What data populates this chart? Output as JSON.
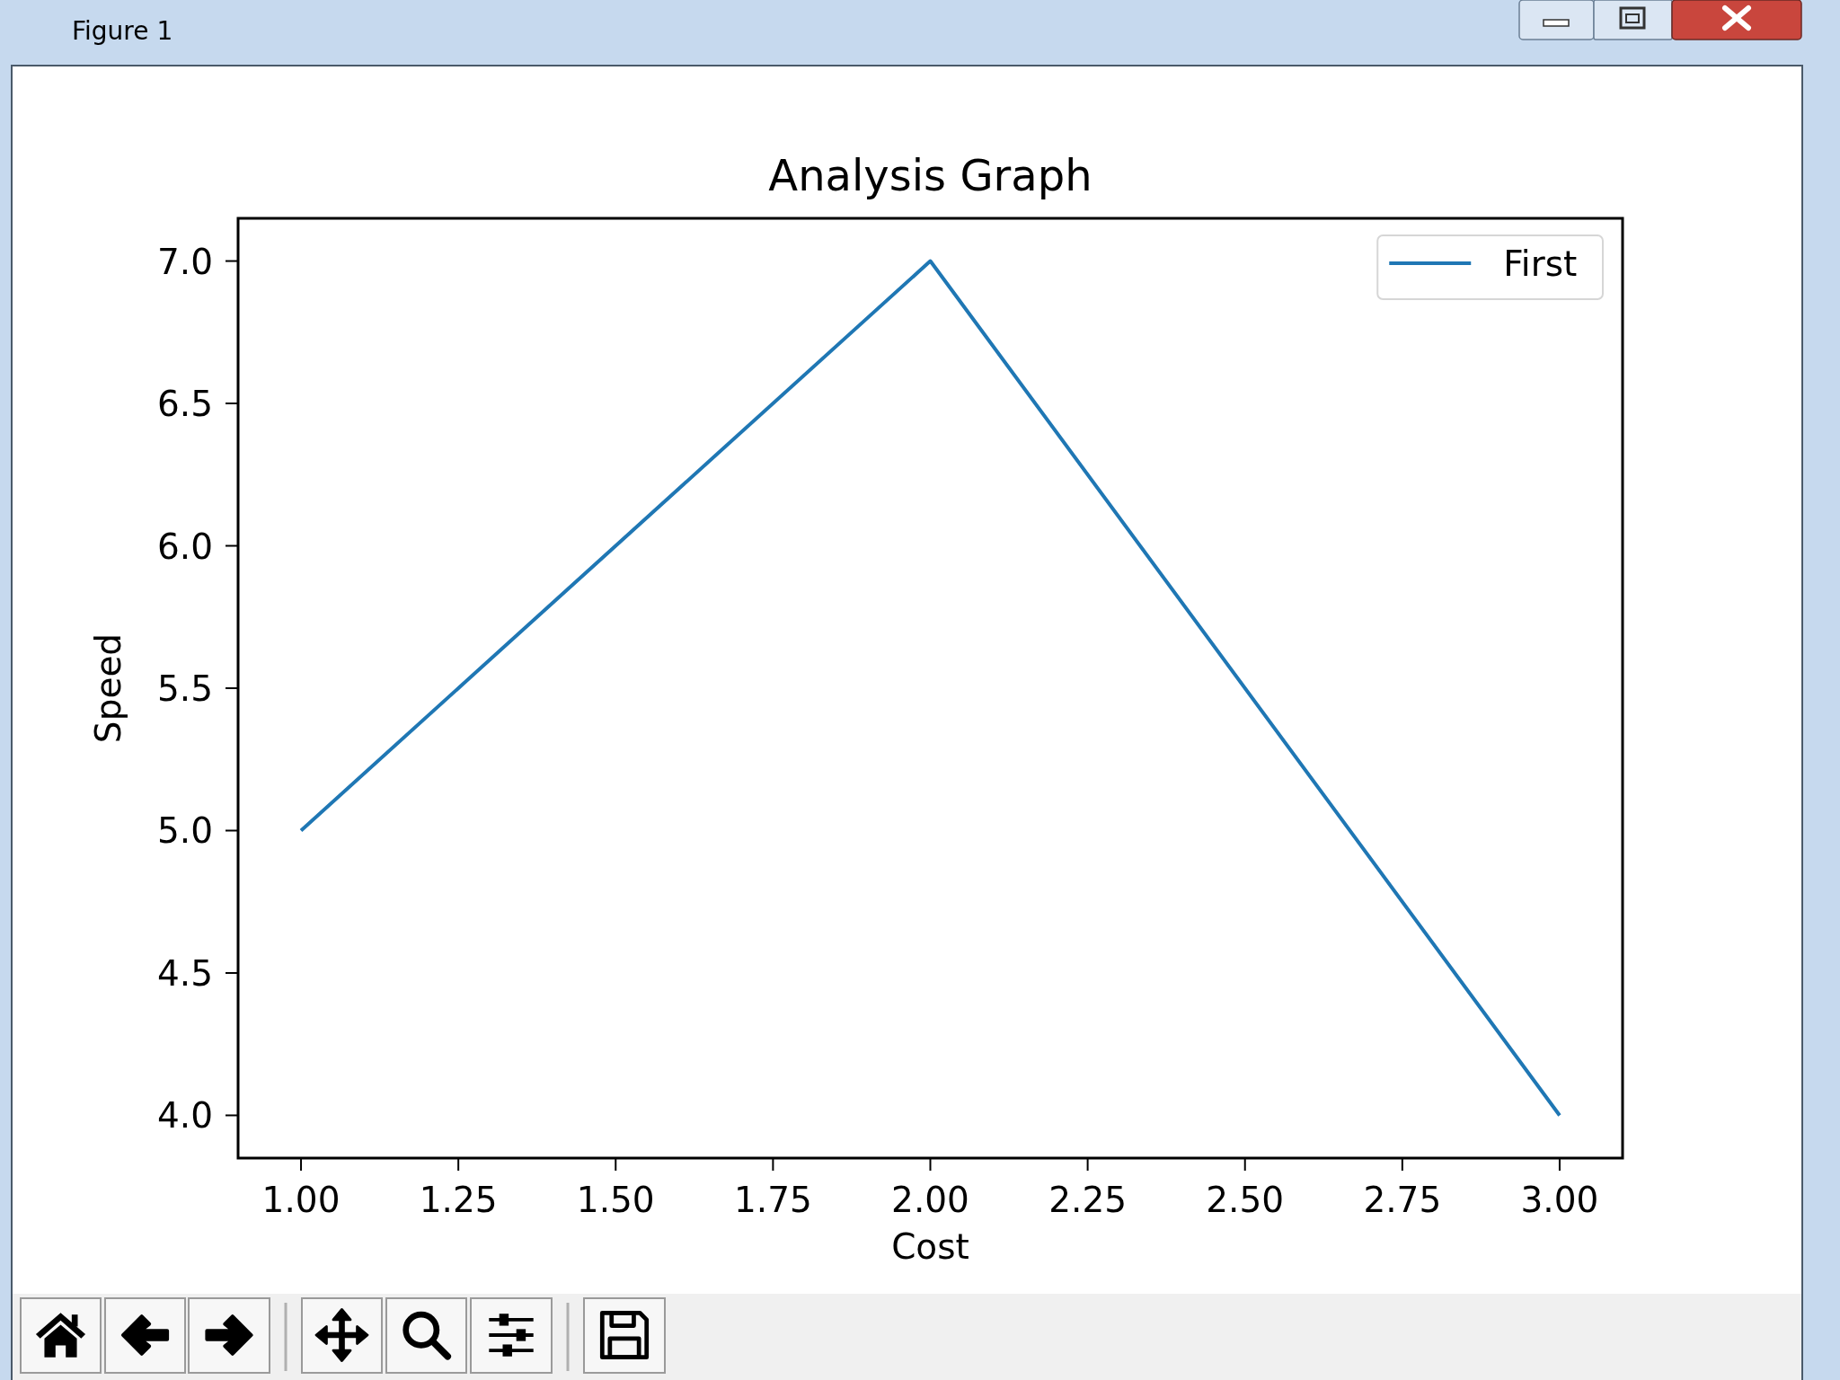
{
  "chart_data": {
    "type": "line",
    "title": "Analysis Graph",
    "xlabel": "Cost",
    "ylabel": "Speed",
    "x": [
      1,
      2,
      3
    ],
    "series": [
      {
        "name": "First",
        "color": "#1f77b4",
        "values": [
          5,
          7,
          4
        ]
      }
    ],
    "xlim": [
      0.9,
      3.1
    ],
    "xticks": [
      {
        "value": 1,
        "label": "1.00"
      },
      {
        "value": 1.25,
        "label": "1.25"
      },
      {
        "value": 1.5,
        "label": "1.50"
      },
      {
        "value": 1.75,
        "label": "1.75"
      },
      {
        "value": 2,
        "label": "2.00"
      },
      {
        "value": 2.25,
        "label": "2.25"
      },
      {
        "value": 2.5,
        "label": "2.50"
      },
      {
        "value": 2.75,
        "label": "2.75"
      },
      {
        "value": 3,
        "label": "3.00"
      }
    ],
    "ylim": [
      3.85,
      7.15
    ],
    "yticks": [
      {
        "value": 4,
        "label": "4.0"
      },
      {
        "value": 4.5,
        "label": "4.5"
      },
      {
        "value": 5,
        "label": "5.0"
      },
      {
        "value": 5.5,
        "label": "5.5"
      },
      {
        "value": 6,
        "label": "6.0"
      },
      {
        "value": 6.5,
        "label": "6.5"
      },
      {
        "value": 7,
        "label": "7.0"
      }
    ],
    "legend": "top right",
    "line_style": "solid",
    "annotations": [
      "Figure 1"
    ]
  }
}
